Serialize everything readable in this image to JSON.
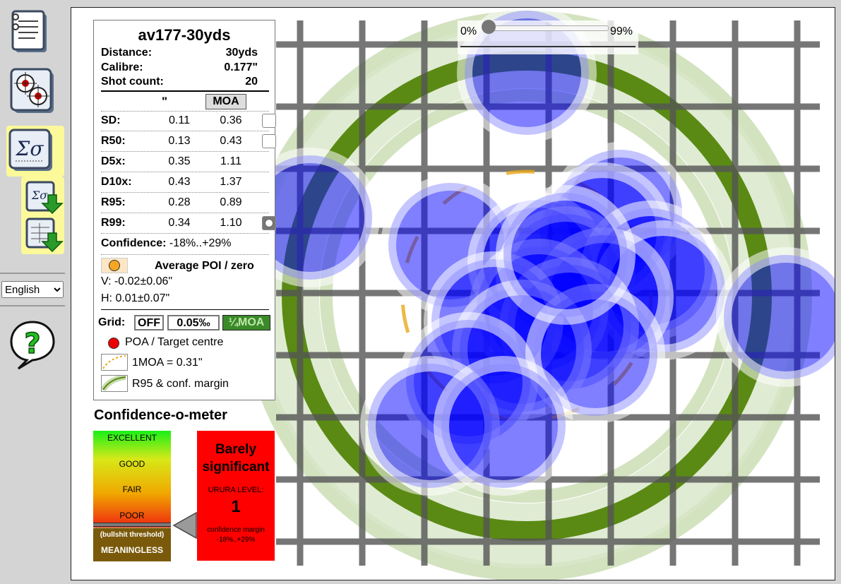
{
  "sidebar": {
    "tools": [
      {
        "name": "notes-tool",
        "icon": "notepad-icon"
      },
      {
        "name": "targets-tool",
        "icon": "targets-icon"
      },
      {
        "name": "statistics-tool",
        "icon": "sigma-icon",
        "active": true
      },
      {
        "name": "export-stats-tool",
        "icon": "export-stats-icon"
      },
      {
        "name": "export-table-tool",
        "icon": "export-table-icon"
      }
    ],
    "language": {
      "selected": "English"
    },
    "help_icon": "help-icon"
  },
  "slider": {
    "min_label": "0%",
    "max_label": "99%"
  },
  "info": {
    "title": "av177-30yds",
    "distance_label": "Distance:",
    "distance_value": "30yds",
    "calibre_label": "Calibre:",
    "calibre_value": "0.177\"",
    "shots_label": "Shot count:",
    "shots_value": "20",
    "unit_inch": "\"",
    "unit_moa": "MOA",
    "stats": [
      {
        "key": "SD:",
        "inch": "0.11",
        "moa": "0.36",
        "check": false
      },
      {
        "key": "R50:",
        "inch": "0.13",
        "moa": "0.43",
        "check": false
      },
      {
        "key": "D5x:",
        "inch": "0.35",
        "moa": "1.11"
      },
      {
        "key": "D10x:",
        "inch": "0.43",
        "moa": "1.37"
      },
      {
        "key": "R95:",
        "inch": "0.28",
        "moa": "0.89"
      },
      {
        "key": "R99:",
        "inch": "0.34",
        "moa": "1.10",
        "check": true
      }
    ],
    "confidence_label": "Confidence:",
    "confidence_value": "-18%..+29%",
    "poi_label": "Average POI / zero",
    "poi_v": "V: -0.02±0.06\"",
    "poi_h": "H: 0.01±0.07\"",
    "grid_label": "Grid:",
    "grid_off": "OFF",
    "grid_005": "0.05‰",
    "grid_moa": "¼MOA",
    "legend_poa": "POA / Target centre",
    "legend_moa": "1MOA = 0.31\"",
    "legend_r95": "R95 & conf. margin"
  },
  "meter": {
    "title": "Confidence-o-meter",
    "levels": [
      "EXCELLENT",
      "GOOD",
      "FAIR",
      "POOR"
    ],
    "threshold": "(bullshit threshold)",
    "meaningless": "MEANINGLESS",
    "verdict_line1": "Barely",
    "verdict_line2": "significant",
    "urura_label": "URURA LEVEL:",
    "urura_value": "1",
    "margin_label": "confidence margin",
    "margin_value": "-18%..+29%",
    "colors": {
      "verdict_bg": "#ff0000",
      "meaningless_bg": "#7a5a0a"
    }
  },
  "colors": {
    "shot": "#0000ff",
    "ring": "#5a8a14",
    "ring_light": "#c8dcb0",
    "grid": "#666666"
  }
}
